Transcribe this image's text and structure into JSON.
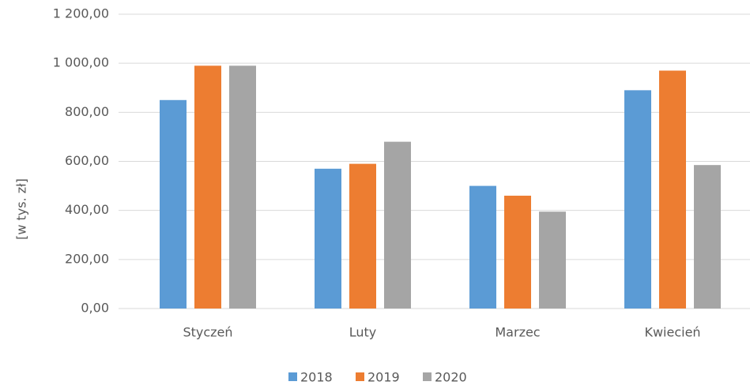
{
  "chart_data": {
    "type": "bar",
    "y_label": "[w tys. zł]",
    "categories": [
      "Styczeń",
      "Luty",
      "Marzec",
      "Kwiecień"
    ],
    "series": [
      {
        "name": "2018",
        "color": "#5b9bd5",
        "values": [
          850,
          570,
          500,
          890
        ]
      },
      {
        "name": "2019",
        "color": "#ed7d31",
        "values": [
          990,
          590,
          460,
          970
        ]
      },
      {
        "name": "2020",
        "color": "#a5a5a5",
        "values": [
          990,
          680,
          395,
          585
        ]
      }
    ],
    "ylim": [
      0,
      1200
    ],
    "yticks": [
      {
        "value": 0,
        "label": "0,00"
      },
      {
        "value": 200,
        "label": "200,00"
      },
      {
        "value": 400,
        "label": "400,00"
      },
      {
        "value": 600,
        "label": "600,00"
      },
      {
        "value": 800,
        "label": "800,00"
      },
      {
        "value": 1000,
        "label": "1 000,00"
      },
      {
        "value": 1200,
        "label": "1 200,00"
      }
    ],
    "grid": true,
    "legend": "bottom"
  }
}
